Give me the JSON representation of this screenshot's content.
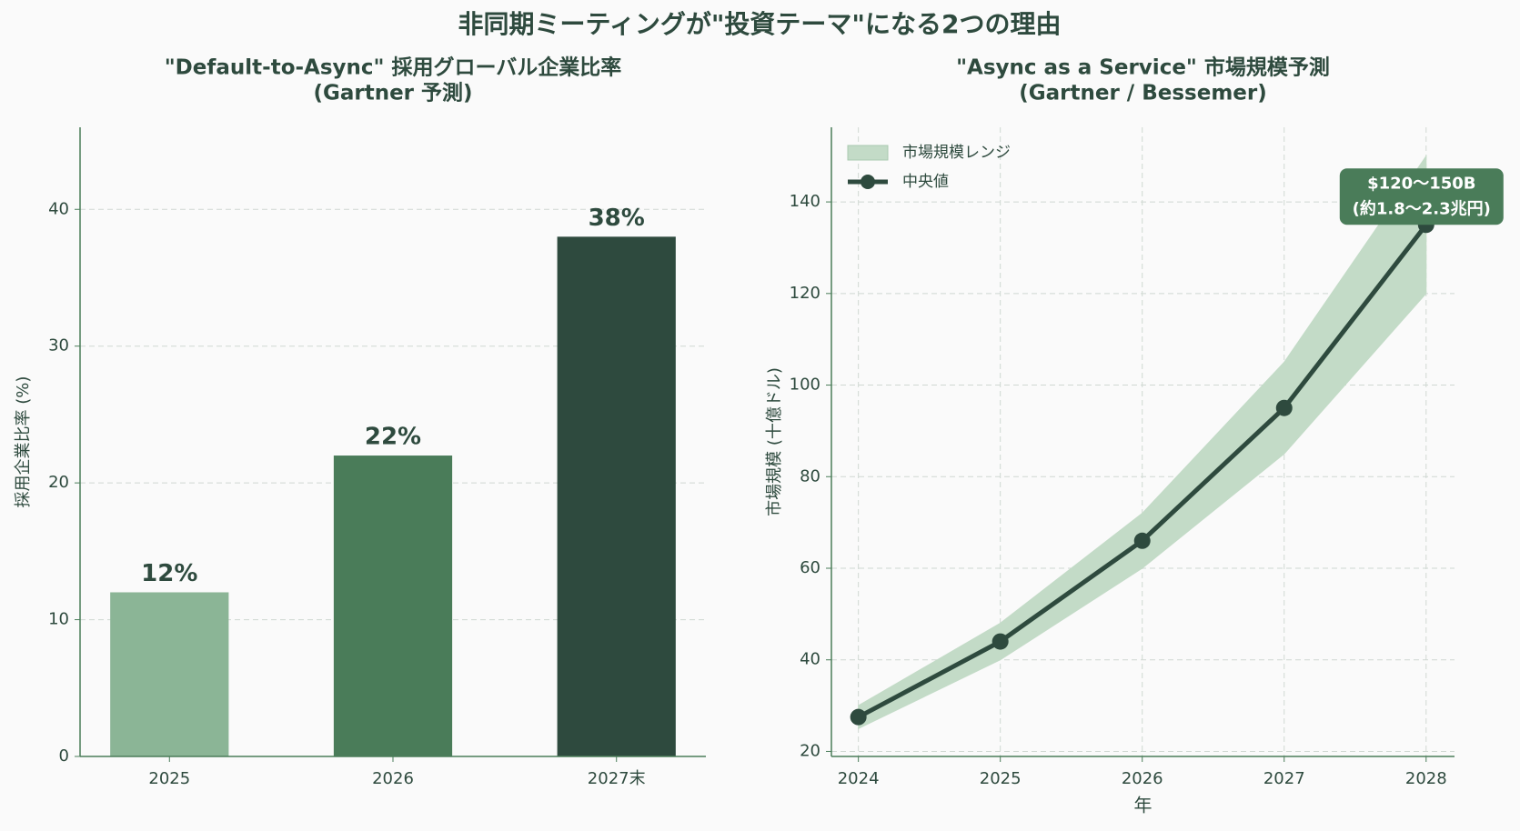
{
  "title": "非同期ミーティングが\"投資テーマ\"になる2つの理由",
  "chart_data": [
    {
      "type": "bar",
      "title": [
        "\"Default-to-Async\" 採用グローバル企業比率",
        "(Gartner 予測)"
      ],
      "ylabel": "採用企業比率 (%)",
      "categories": [
        "2025",
        "2026",
        "2027末"
      ],
      "values": [
        12,
        22,
        38
      ],
      "value_labels": [
        "12%",
        "22%",
        "38%"
      ],
      "colors": [
        "#8bb596",
        "#4a7c59",
        "#2e4a3e"
      ],
      "ylim": [
        0,
        46
      ],
      "yticks": [
        0,
        10,
        20,
        30,
        40
      ],
      "grid": true
    },
    {
      "type": "line",
      "title": [
        "\"Async as a Service\" 市場規模予測",
        "(Gartner / Bessemer)"
      ],
      "xlabel": "年",
      "ylabel": "市場規模 (十億ドル)",
      "x": [
        2024,
        2025,
        2026,
        2027,
        2028
      ],
      "band": {
        "name": "市場規模レンジ",
        "color": "#c3dbc7",
        "lower": [
          25,
          40,
          60,
          85,
          120
        ],
        "upper": [
          30,
          48,
          72,
          105,
          150
        ]
      },
      "series": [
        {
          "name": "中央値",
          "color": "#2e4a3e",
          "values": [
            27.5,
            44,
            66,
            95,
            135
          ]
        }
      ],
      "annotation": [
        "$120〜150B",
        "(約1.8〜2.3兆円)"
      ],
      "xlim": [
        2023.81,
        2028.2
      ],
      "xticks": [
        2024,
        2025,
        2026,
        2027,
        2028
      ],
      "ylim": [
        18.9,
        156.3
      ],
      "yticks": [
        20,
        40,
        60,
        80,
        100,
        120,
        140
      ],
      "grid": true,
      "legend": "upper left"
    }
  ]
}
